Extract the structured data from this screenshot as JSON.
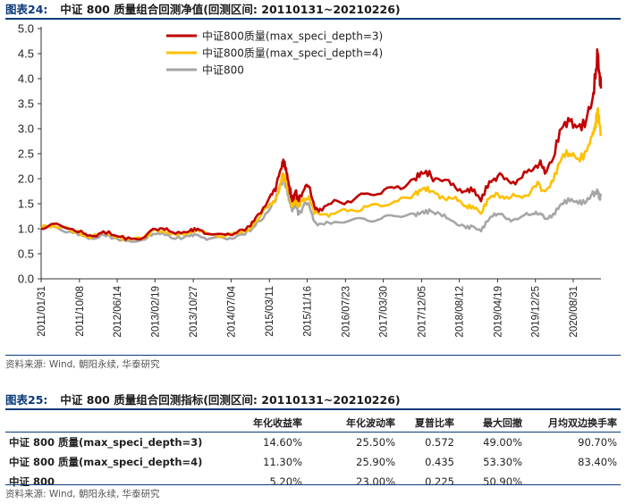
{
  "figure24": {
    "num": "图表24:",
    "title": "中证 800 质量组合回测净值(回测区间: 20110131~20210226)",
    "source": "资料来源: Wind, 朝阳永续, 华泰研究"
  },
  "figure25": {
    "num": "图表25:",
    "title": "中证 800 质量组合回测指标(回测区间: 20110131~20210226)",
    "source": "资料来源: Wind, 朝阳永续, 华泰研究",
    "headers": [
      "年化收益率",
      "年化波动率",
      "夏普比率",
      "最大回撤",
      "月均双边换手率"
    ],
    "rows": [
      {
        "name": "中证 800 质量(max_speci_depth=3)",
        "cells": [
          "14.60%",
          "25.50%",
          "0.572",
          "49.00%",
          "90.70%"
        ]
      },
      {
        "name": "中证 800 质量(max_speci_depth=4)",
        "cells": [
          "11.30%",
          "25.90%",
          "0.435",
          "53.30%",
          "83.40%"
        ]
      },
      {
        "name": "中证 800",
        "cells": [
          "5.20%",
          "23.00%",
          "0.225",
          "50.90%",
          ""
        ]
      }
    ]
  },
  "chart_data": {
    "type": "line",
    "title": "中证 800 质量组合回测净值(回测区间: 20110131~20210226)",
    "ylim": [
      0,
      5.0
    ],
    "yticks": [
      "0.0",
      "0.5",
      "1.0",
      "1.5",
      "2.0",
      "2.5",
      "3.0",
      "3.5",
      "4.0",
      "4.5",
      "5.0"
    ],
    "xlim": [
      2011.08,
      2021.16
    ],
    "xtick_labels": [
      "2011/01/31",
      "2011/10/08",
      "2012/06/14",
      "2013/02/19",
      "2013/10/27",
      "2014/07/04",
      "2015/03/11",
      "2015/11/16",
      "2016/07/23",
      "2017/03/30",
      "2017/12/05",
      "2018/08/12",
      "2019/04/19",
      "2019/12/25",
      "2020/08/31"
    ],
    "xtick_values": [
      2011.08,
      2011.77,
      2012.45,
      2013.13,
      2013.82,
      2014.5,
      2015.19,
      2015.87,
      2016.56,
      2017.24,
      2017.93,
      2018.61,
      2019.3,
      2019.98,
      2020.66
    ],
    "series": [
      {
        "name": "中证800质量(max_speci_depth=3)",
        "color": "#c00000",
        "points": [
          [
            2011.08,
            1.0
          ],
          [
            2011.3,
            1.1
          ],
          [
            2011.6,
            1.0
          ],
          [
            2011.85,
            0.9
          ],
          [
            2012.0,
            0.85
          ],
          [
            2012.2,
            0.95
          ],
          [
            2012.45,
            0.85
          ],
          [
            2012.7,
            0.8
          ],
          [
            2012.92,
            0.82
          ],
          [
            2013.1,
            1.0
          ],
          [
            2013.3,
            0.98
          ],
          [
            2013.5,
            0.9
          ],
          [
            2013.75,
            0.95
          ],
          [
            2013.9,
            1.0
          ],
          [
            2014.1,
            0.9
          ],
          [
            2014.4,
            0.88
          ],
          [
            2014.6,
            0.92
          ],
          [
            2014.85,
            1.05
          ],
          [
            2015.0,
            1.3
          ],
          [
            2015.2,
            1.65
          ],
          [
            2015.3,
            1.75
          ],
          [
            2015.4,
            2.2
          ],
          [
            2015.44,
            2.38
          ],
          [
            2015.5,
            2.1
          ],
          [
            2015.55,
            1.85
          ],
          [
            2015.6,
            1.55
          ],
          [
            2015.66,
            1.75
          ],
          [
            2015.72,
            1.55
          ],
          [
            2015.8,
            1.75
          ],
          [
            2015.9,
            1.85
          ],
          [
            2016.0,
            1.45
          ],
          [
            2016.1,
            1.4
          ],
          [
            2016.3,
            1.5
          ],
          [
            2016.6,
            1.55
          ],
          [
            2016.9,
            1.7
          ],
          [
            2017.2,
            1.7
          ],
          [
            2017.5,
            1.85
          ],
          [
            2017.8,
            2.0
          ],
          [
            2017.95,
            2.1
          ],
          [
            2018.1,
            2.05
          ],
          [
            2018.3,
            1.95
          ],
          [
            2018.5,
            1.9
          ],
          [
            2018.7,
            1.75
          ],
          [
            2018.85,
            1.75
          ],
          [
            2019.0,
            1.55
          ],
          [
            2019.15,
            1.95
          ],
          [
            2019.3,
            2.05
          ],
          [
            2019.5,
            1.95
          ],
          [
            2019.7,
            2.0
          ],
          [
            2019.9,
            2.15
          ],
          [
            2020.05,
            2.3
          ],
          [
            2020.15,
            2.1
          ],
          [
            2020.3,
            2.4
          ],
          [
            2020.45,
            3.0
          ],
          [
            2020.6,
            3.15
          ],
          [
            2020.75,
            3.05
          ],
          [
            2020.9,
            3.2
          ],
          [
            2021.0,
            3.55
          ],
          [
            2021.06,
            4.0
          ],
          [
            2021.1,
            4.5
          ],
          [
            2021.13,
            4.1
          ],
          [
            2021.16,
            3.8
          ]
        ]
      },
      {
        "name": "中证800质量(max_speci_depth=4)",
        "color": "#ffc000",
        "points": [
          [
            2011.08,
            1.0
          ],
          [
            2011.3,
            1.08
          ],
          [
            2011.6,
            0.98
          ],
          [
            2011.85,
            0.88
          ],
          [
            2012.0,
            0.83
          ],
          [
            2012.2,
            0.92
          ],
          [
            2012.45,
            0.83
          ],
          [
            2012.7,
            0.78
          ],
          [
            2012.92,
            0.8
          ],
          [
            2013.1,
            0.97
          ],
          [
            2013.3,
            0.95
          ],
          [
            2013.5,
            0.88
          ],
          [
            2013.75,
            0.92
          ],
          [
            2013.9,
            0.97
          ],
          [
            2014.1,
            0.88
          ],
          [
            2014.4,
            0.86
          ],
          [
            2014.6,
            0.9
          ],
          [
            2014.85,
            1.0
          ],
          [
            2015.0,
            1.2
          ],
          [
            2015.2,
            1.5
          ],
          [
            2015.3,
            1.6
          ],
          [
            2015.4,
            1.95
          ],
          [
            2015.44,
            2.1
          ],
          [
            2015.5,
            1.9
          ],
          [
            2015.55,
            1.7
          ],
          [
            2015.6,
            1.45
          ],
          [
            2015.66,
            1.6
          ],
          [
            2015.72,
            1.45
          ],
          [
            2015.8,
            1.6
          ],
          [
            2015.9,
            1.65
          ],
          [
            2016.0,
            1.3
          ],
          [
            2016.1,
            1.28
          ],
          [
            2016.3,
            1.3
          ],
          [
            2016.6,
            1.35
          ],
          [
            2016.9,
            1.45
          ],
          [
            2017.2,
            1.45
          ],
          [
            2017.5,
            1.55
          ],
          [
            2017.8,
            1.7
          ],
          [
            2017.95,
            1.8
          ],
          [
            2018.1,
            1.75
          ],
          [
            2018.3,
            1.65
          ],
          [
            2018.5,
            1.6
          ],
          [
            2018.7,
            1.45
          ],
          [
            2018.85,
            1.45
          ],
          [
            2019.0,
            1.3
          ],
          [
            2019.15,
            1.6
          ],
          [
            2019.3,
            1.7
          ],
          [
            2019.5,
            1.6
          ],
          [
            2019.7,
            1.65
          ],
          [
            2019.9,
            1.75
          ],
          [
            2020.05,
            1.9
          ],
          [
            2020.15,
            1.75
          ],
          [
            2020.3,
            1.95
          ],
          [
            2020.45,
            2.4
          ],
          [
            2020.6,
            2.5
          ],
          [
            2020.75,
            2.4
          ],
          [
            2020.9,
            2.55
          ],
          [
            2021.0,
            2.85
          ],
          [
            2021.06,
            3.1
          ],
          [
            2021.1,
            3.4
          ],
          [
            2021.13,
            3.1
          ],
          [
            2021.16,
            2.9
          ]
        ]
      },
      {
        "name": "中证800",
        "color": "#a6a6a6",
        "points": [
          [
            2011.08,
            1.0
          ],
          [
            2011.3,
            1.05
          ],
          [
            2011.6,
            0.95
          ],
          [
            2011.85,
            0.85
          ],
          [
            2012.0,
            0.8
          ],
          [
            2012.2,
            0.88
          ],
          [
            2012.45,
            0.8
          ],
          [
            2012.7,
            0.74
          ],
          [
            2012.92,
            0.78
          ],
          [
            2013.1,
            0.9
          ],
          [
            2013.3,
            0.88
          ],
          [
            2013.5,
            0.8
          ],
          [
            2013.75,
            0.85
          ],
          [
            2013.9,
            0.88
          ],
          [
            2014.1,
            0.8
          ],
          [
            2014.4,
            0.8
          ],
          [
            2014.6,
            0.85
          ],
          [
            2014.85,
            0.95
          ],
          [
            2015.0,
            1.15
          ],
          [
            2015.2,
            1.4
          ],
          [
            2015.3,
            1.55
          ],
          [
            2015.4,
            1.9
          ],
          [
            2015.44,
            2.05
          ],
          [
            2015.5,
            1.8
          ],
          [
            2015.55,
            1.6
          ],
          [
            2015.6,
            1.35
          ],
          [
            2015.66,
            1.5
          ],
          [
            2015.72,
            1.3
          ],
          [
            2015.8,
            1.45
          ],
          [
            2015.9,
            1.5
          ],
          [
            2016.0,
            1.15
          ],
          [
            2016.1,
            1.1
          ],
          [
            2016.3,
            1.1
          ],
          [
            2016.6,
            1.15
          ],
          [
            2016.9,
            1.2
          ],
          [
            2017.2,
            1.2
          ],
          [
            2017.5,
            1.25
          ],
          [
            2017.8,
            1.3
          ],
          [
            2017.95,
            1.35
          ],
          [
            2018.1,
            1.35
          ],
          [
            2018.3,
            1.25
          ],
          [
            2018.5,
            1.15
          ],
          [
            2018.7,
            1.05
          ],
          [
            2018.85,
            1.05
          ],
          [
            2019.0,
            0.95
          ],
          [
            2019.15,
            1.2
          ],
          [
            2019.3,
            1.3
          ],
          [
            2019.5,
            1.2
          ],
          [
            2019.7,
            1.22
          ],
          [
            2019.9,
            1.28
          ],
          [
            2020.05,
            1.3
          ],
          [
            2020.15,
            1.2
          ],
          [
            2020.3,
            1.3
          ],
          [
            2020.45,
            1.5
          ],
          [
            2020.6,
            1.55
          ],
          [
            2020.75,
            1.5
          ],
          [
            2020.9,
            1.55
          ],
          [
            2021.0,
            1.7
          ],
          [
            2021.06,
            1.7
          ],
          [
            2021.1,
            1.75
          ],
          [
            2021.13,
            1.65
          ],
          [
            2021.16,
            1.65
          ]
        ]
      }
    ]
  }
}
